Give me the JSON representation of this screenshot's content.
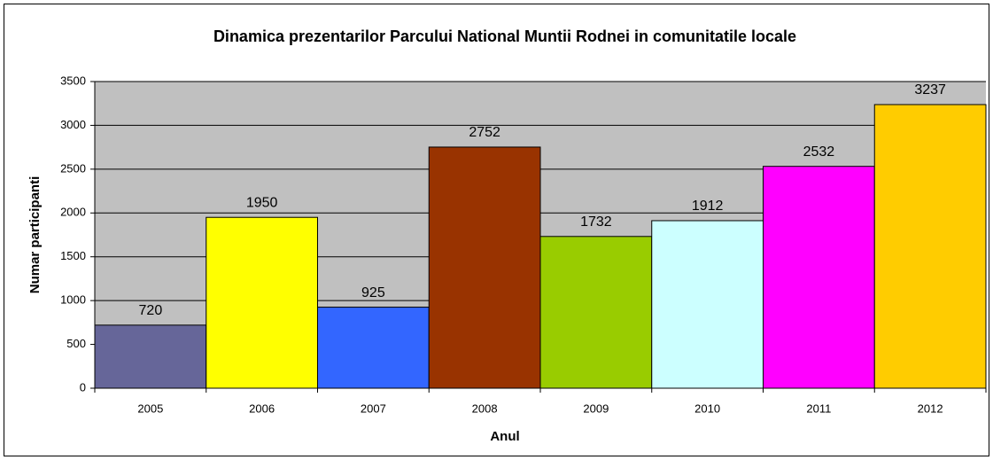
{
  "chart_data": {
    "type": "bar",
    "title": "Dinamica prezentarilor Parcului National Muntii Rodnei in comunitatile locale",
    "x_label": "Anul",
    "y_label": "Numar participanti",
    "categories": [
      "2005",
      "2006",
      "2007",
      "2008",
      "2009",
      "2010",
      "2011",
      "2012"
    ],
    "values": [
      720,
      1950,
      925,
      2752,
      1732,
      1912,
      2532,
      3237
    ],
    "colors": [
      "#666699",
      "#ffff00",
      "#3366ff",
      "#993300",
      "#99cc00",
      "#ccffff",
      "#ff00ff",
      "#ffcc00"
    ],
    "ylim": [
      0,
      3500
    ],
    "yticks": [
      0,
      500,
      1000,
      1500,
      2000,
      2500,
      3000,
      3500
    ],
    "grid": true
  }
}
